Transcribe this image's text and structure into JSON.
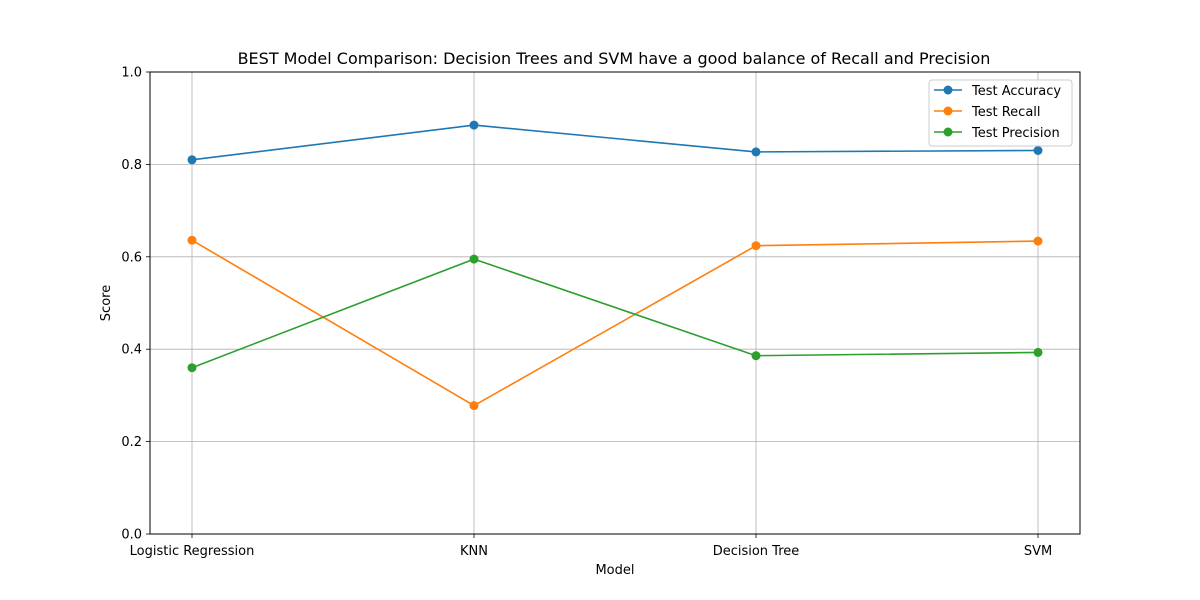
{
  "chart_data": {
    "type": "line",
    "title": "BEST Model Comparison: Decision Trees and SVM have a good balance of Recall and Precision",
    "xlabel": "Model",
    "ylabel": "Score",
    "categories": [
      "Logistic Regression",
      "KNN",
      "Decision Tree",
      "SVM"
    ],
    "ylim": [
      0.0,
      1.0
    ],
    "yticks": [
      "0.0",
      "0.2",
      "0.4",
      "0.6",
      "0.8",
      "1.0"
    ],
    "grid": true,
    "legend_position": "top-right",
    "series": [
      {
        "name": "Test Accuracy",
        "color": "#1f77b4",
        "values": [
          0.81,
          0.885,
          0.827,
          0.83
        ]
      },
      {
        "name": "Test Recall",
        "color": "#ff7f0e",
        "values": [
          0.636,
          0.278,
          0.624,
          0.634
        ]
      },
      {
        "name": "Test Precision",
        "color": "#2ca02c",
        "values": [
          0.36,
          0.595,
          0.386,
          0.393
        ]
      }
    ]
  }
}
